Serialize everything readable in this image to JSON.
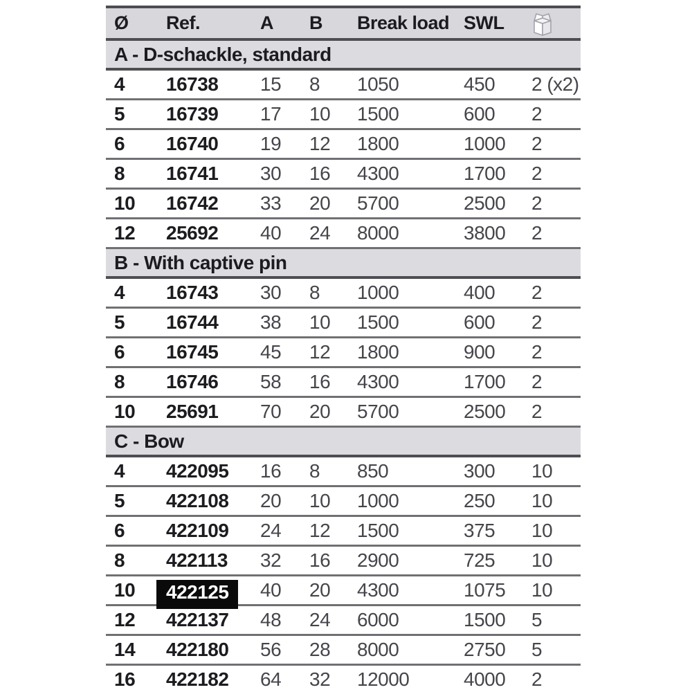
{
  "table": {
    "columns": [
      "Ø",
      "Ref.",
      "A",
      "B",
      "Break load",
      "SWL"
    ],
    "pack_icon": "package-icon",
    "highlighted_ref": "422125",
    "sections": [
      {
        "title": "A - D-schackle, standard",
        "rows": [
          [
            "4",
            "16738",
            "15",
            "8",
            "1050",
            "450",
            "2 (x2)"
          ],
          [
            "5",
            "16739",
            "17",
            "10",
            "1500",
            "600",
            "2"
          ],
          [
            "6",
            "16740",
            "19",
            "12",
            "1800",
            "1000",
            "2"
          ],
          [
            "8",
            "16741",
            "30",
            "16",
            "4300",
            "1700",
            "2"
          ],
          [
            "10",
            "16742",
            "33",
            "20",
            "5700",
            "2500",
            "2"
          ],
          [
            "12",
            "25692",
            "40",
            "24",
            "8000",
            "3800",
            "2"
          ]
        ]
      },
      {
        "title": "B - With captive pin",
        "rows": [
          [
            "4",
            "16743",
            "30",
            "8",
            "1000",
            "400",
            "2"
          ],
          [
            "5",
            "16744",
            "38",
            "10",
            "1500",
            "600",
            "2"
          ],
          [
            "6",
            "16745",
            "45",
            "12",
            "1800",
            "900",
            "2"
          ],
          [
            "8",
            "16746",
            "58",
            "16",
            "4300",
            "1700",
            "2"
          ],
          [
            "10",
            "25691",
            "70",
            "20",
            "5700",
            "2500",
            "2"
          ]
        ]
      },
      {
        "title": "C - Bow",
        "rows": [
          [
            "4",
            "422095",
            "16",
            "8",
            "850",
            "300",
            "10"
          ],
          [
            "5",
            "422108",
            "20",
            "10",
            "1000",
            "250",
            "10"
          ],
          [
            "6",
            "422109",
            "24",
            "12",
            "1500",
            "375",
            "10"
          ],
          [
            "8",
            "422113",
            "32",
            "16",
            "2900",
            "725",
            "10"
          ],
          [
            "10",
            "422125",
            "40",
            "20",
            "4300",
            "1075",
            "10"
          ],
          [
            "12",
            "422137",
            "48",
            "24",
            "6000",
            "1500",
            "5"
          ],
          [
            "14",
            "422180",
            "56",
            "28",
            "8000",
            "2750",
            "5"
          ],
          [
            "16",
            "422182",
            "64",
            "32",
            "12000",
            "4000",
            "2"
          ]
        ]
      }
    ],
    "colors": {
      "header_bg": "#d8d8dc",
      "section_bg": "#dcdce0",
      "border_dark": "#4e4e52",
      "border_mid": "#707074",
      "text_bold": "#1c1c20",
      "text": "#45454b",
      "highlight_bg": "#0a0a0a",
      "highlight_fg": "#ffffff",
      "icon_stroke": "#a2a2aa"
    }
  }
}
